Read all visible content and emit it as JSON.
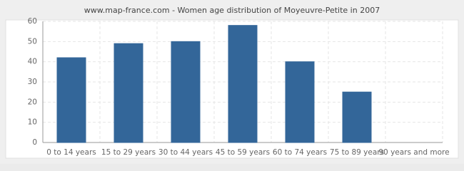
{
  "chart_data": {
    "type": "bar",
    "title": "www.map-france.com - Women age distribution of Moyeuvre-Petite in 2007",
    "categories": [
      "0 to 14 years",
      "15 to 29 years",
      "30 to 44 years",
      "45 to 59 years",
      "60 to 74 years",
      "75 to 89 years",
      "90 years and more"
    ],
    "values": [
      42,
      49,
      50,
      58,
      40,
      25,
      0
    ],
    "color": "#336699",
    "ylim": [
      0,
      60
    ],
    "yticks": [
      0,
      10,
      20,
      30,
      40,
      50,
      60
    ],
    "grid": true
  }
}
